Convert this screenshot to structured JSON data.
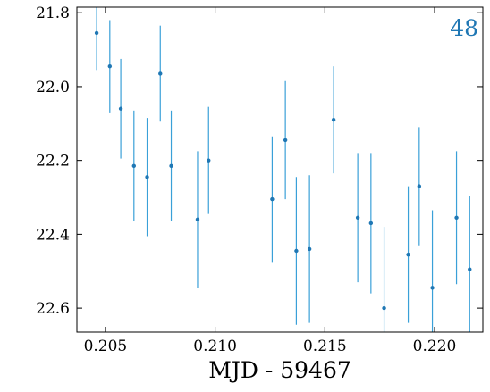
{
  "chart_data": {
    "type": "scatter",
    "title": "",
    "xlabel": "MJD - 59467",
    "ylabel": "",
    "annotation": "48",
    "inverted_y": true,
    "xlim": [
      0.2037,
      0.2222
    ],
    "ylim": [
      22.665,
      21.785
    ],
    "xticks": [
      0.205,
      0.21,
      0.215,
      0.22
    ],
    "xtick_labels": [
      "0.205",
      "0.210",
      "0.215",
      "0.220"
    ],
    "yticks": [
      21.8,
      22.0,
      22.2,
      22.4,
      22.6
    ],
    "ytick_labels": [
      "21.8",
      "22.0",
      "22.2",
      "22.4",
      "22.6"
    ],
    "colors": {
      "points": "#1f77b4",
      "errorbars": "#3aa0d8",
      "annotation": "#1f77b4"
    },
    "series": [
      {
        "x": [
          0.2046,
          0.2052,
          0.2057,
          0.2063,
          0.2069,
          0.2075,
          0.208,
          0.2092,
          0.2097,
          0.2126,
          0.2132,
          0.2137,
          0.2143,
          0.2154,
          0.2165,
          0.2171,
          0.2177,
          0.2188,
          0.2193,
          0.2199,
          0.221,
          0.2216
        ],
        "y": [
          21.855,
          21.945,
          22.06,
          22.215,
          22.245,
          21.965,
          22.215,
          22.36,
          22.2,
          22.305,
          22.145,
          22.445,
          22.44,
          22.09,
          22.355,
          22.37,
          22.6,
          22.455,
          22.27,
          22.545,
          22.355,
          22.495
        ],
        "err": [
          0.1,
          0.125,
          0.135,
          0.15,
          0.16,
          0.13,
          0.15,
          0.185,
          0.145,
          0.17,
          0.16,
          0.2,
          0.2,
          0.145,
          0.175,
          0.19,
          0.22,
          0.185,
          0.16,
          0.21,
          0.18,
          0.2
        ]
      }
    ]
  }
}
